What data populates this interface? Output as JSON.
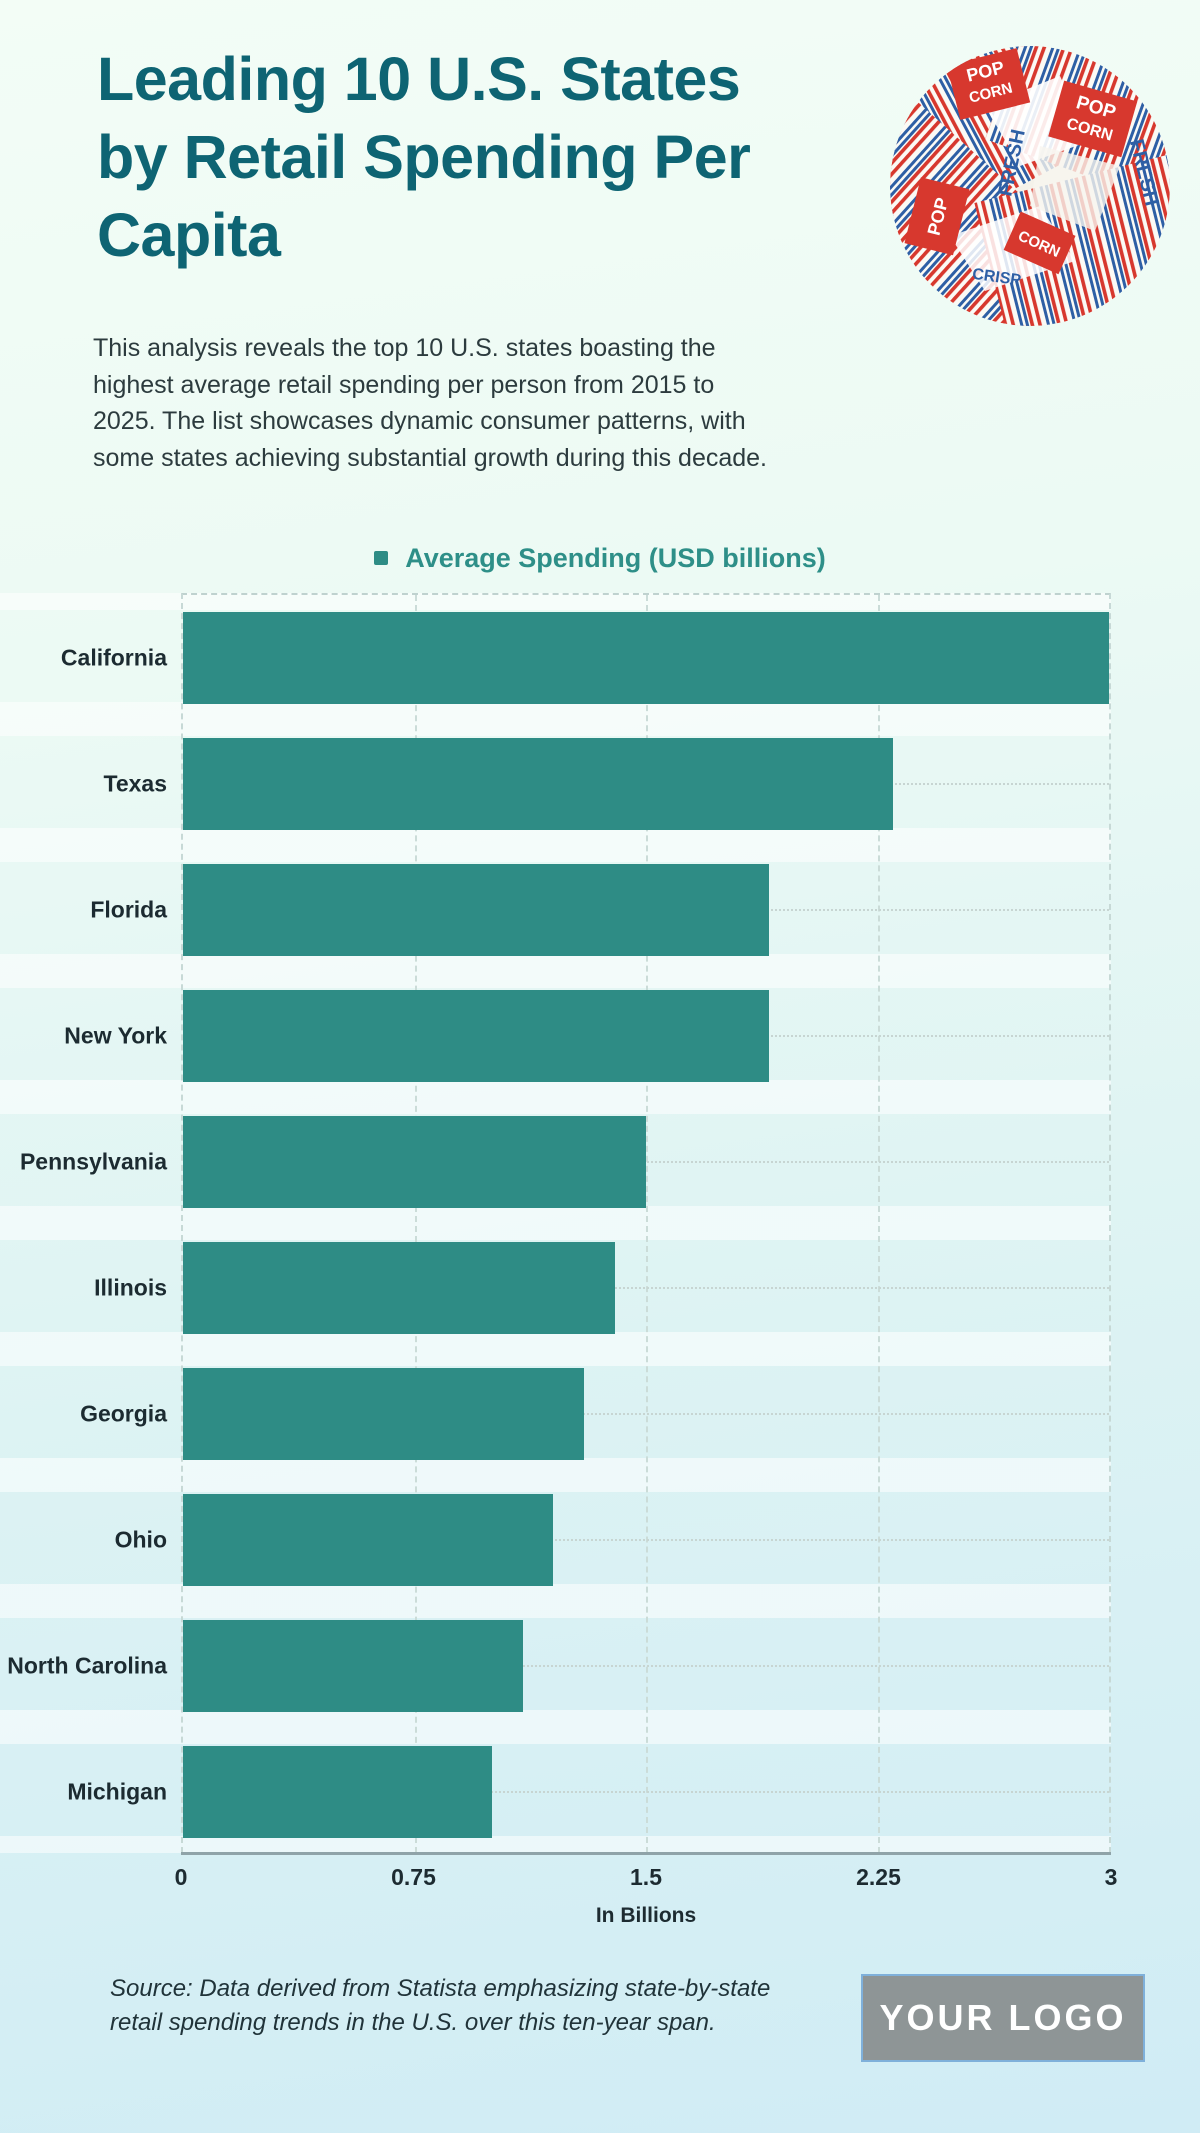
{
  "header": {
    "title_lines": [
      "Leading 10 U.S. States",
      "by Retail Spending Per",
      "Capita"
    ],
    "description": "This analysis reveals the top 10 U.S. states boasting the highest average retail spending per person from 2015 to 2025. The list showcases dynamic consumer patterns, with some states achieving substantial growth during this decade.",
    "hero_image": {
      "name": "vintage-popcorn-bags-photo",
      "texts": {
        "pop": "POP",
        "corn": "CORN",
        "fresh": "FRESH",
        "crisp": "CRISP"
      }
    }
  },
  "chart_data": {
    "type": "bar",
    "orientation": "horizontal",
    "title": "",
    "legend": "Average Spending (USD billions)",
    "legend_position": "top",
    "categories": [
      "California",
      "Texas",
      "Florida",
      "New York",
      "Pennsylvania",
      "Illinois",
      "Georgia",
      "Ohio",
      "North Carolina",
      "Michigan"
    ],
    "values": [
      3.0,
      2.3,
      1.9,
      1.9,
      1.5,
      1.4,
      1.3,
      1.2,
      1.1,
      1.0
    ],
    "xlabel": "In Billions",
    "ylabel": "",
    "xlim": [
      0,
      3
    ],
    "xticks": [
      0,
      0.75,
      1.5,
      2.25,
      3
    ],
    "xtick_labels": [
      "0",
      "0.75",
      "1.5",
      "2.25",
      "3"
    ],
    "grid": true,
    "bar_color": "#2e8c85"
  },
  "footer": {
    "source_lines": [
      "Source: Data derived from Statista emphasizing state-by-state",
      "retail spending trends in the U.S. over this ten-year span."
    ],
    "logo_text": "YOUR LOGO"
  },
  "colors": {
    "title": "#0e6473",
    "body_text": "#2c3b3e",
    "bar": "#2e8c85",
    "legend_text": "#2e8f88",
    "axis_labels": "#1d2b31",
    "gridline": "#cbdcd8",
    "axis_line": "#8fa3a8",
    "background_top": "#f3fdf6",
    "background_bottom": "#d0ecf5",
    "logo_background": "#8e9596",
    "logo_border": "#7fb0da"
  }
}
